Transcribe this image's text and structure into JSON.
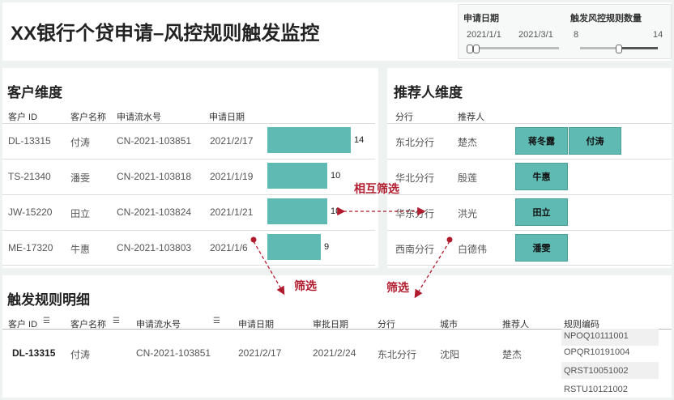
{
  "header": {
    "title": "XX银行个贷申请–风控规则触发监控"
  },
  "filters": {
    "date": {
      "label": "申请日期",
      "start": "2021/1/1",
      "end": "2021/3/1"
    },
    "count": {
      "label": "触发风控规则数量",
      "min": "8",
      "max": "14"
    }
  },
  "customer": {
    "title": "客户维度",
    "headers": [
      "客户 ID",
      "客户名称",
      "申请流水号",
      "申请日期"
    ],
    "rows": [
      {
        "id": "DL-13315",
        "name": "付涛",
        "serial": "CN-2021-103851",
        "date": "2021/2/17",
        "count": 14
      },
      {
        "id": "TS-21340",
        "name": "潘雯",
        "serial": "CN-2021-103818",
        "date": "2021/1/19",
        "count": 10
      },
      {
        "id": "JW-15220",
        "name": "田立",
        "serial": "CN-2021-103824",
        "date": "2021/1/21",
        "count": 10
      },
      {
        "id": "ME-17320",
        "name": "牛惠",
        "serial": "CN-2021-103803",
        "date": "2021/1/6",
        "count": 9
      }
    ]
  },
  "referrer": {
    "title": "推荐人维度",
    "headers": [
      "分行",
      "推荐人"
    ],
    "rows": [
      {
        "branch": "东北分行",
        "person": "楚杰",
        "tiles": [
          "蒋冬露",
          "付涛"
        ]
      },
      {
        "branch": "华北分行",
        "person": "殷莲",
        "tiles": [
          "牛惠"
        ]
      },
      {
        "branch": "华东分行",
        "person": "洪光",
        "tiles": [
          "田立"
        ]
      },
      {
        "branch": "西南分行",
        "person": "白德伟",
        "tiles": [
          "潘雯"
        ]
      }
    ]
  },
  "annotations": {
    "mutual": "相互筛选",
    "filter_left": "筛选",
    "filter_right": "筛选"
  },
  "detail": {
    "title": "触发规则明细",
    "headers": [
      "客户 ID",
      "客户名称",
      "申请流水号",
      "申请日期",
      "审批日期",
      "分行",
      "城市",
      "推荐人",
      "规则编码"
    ],
    "row": {
      "id": "DL-13315",
      "name": "付涛",
      "serial": "CN-2021-103851",
      "apply_date": "2021/2/17",
      "approve_date": "2021/2/24",
      "branch": "东北分行",
      "city": "沈阳",
      "person": "楚杰",
      "codes": [
        "NPOQ10111001",
        "OPQR10191004",
        "QRST10051002",
        "RSTU10121002"
      ]
    }
  },
  "colors": {
    "bar": "#5fbab3",
    "annotation": "#b01b2e"
  }
}
